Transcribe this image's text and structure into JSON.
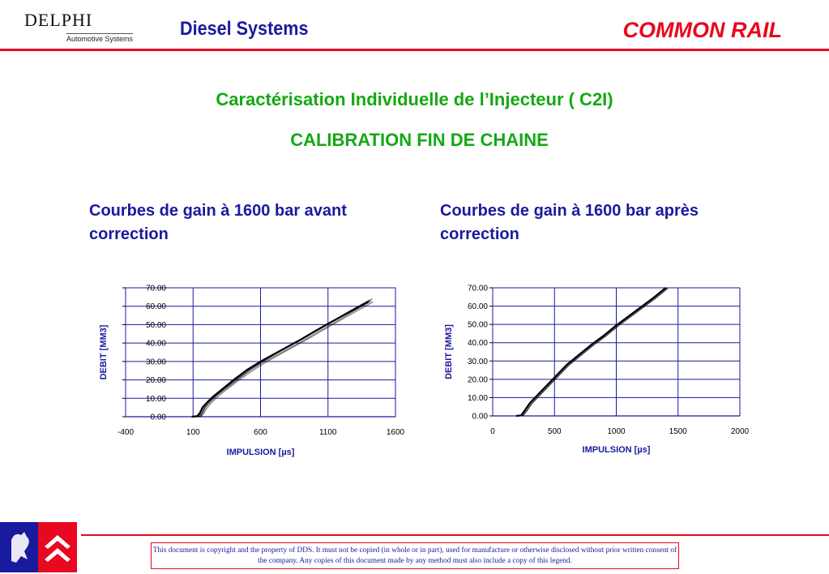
{
  "header": {
    "logo_main": "DELPHI",
    "logo_sub": "Automotive Systems",
    "left_title": "Diesel Systems",
    "right_title": "COMMON RAIL"
  },
  "title_line1": "Caractérisation Individuelle de  l’Injecteur ( C2I)",
  "title_line2": "CALIBRATION FIN DE CHAINE",
  "footer": {
    "notice": "This document is copyright and the property of DDS.  It must not be copied (in whole or in part), used for manufacture or otherwise disclosed without prior written consent of the company.  Any copies of this document made by any method must also include a copy of this legend."
  },
  "colors": {
    "accent_red": "#e8081f",
    "title_blue": "#1a1a9e",
    "title_green": "#14a814",
    "grid_blue": "#1a1a9e"
  },
  "chart_data": [
    {
      "type": "line",
      "caption": "Courbes de gain à 1600 bar avant correction",
      "xlabel": "IMPULSION [µs]",
      "ylabel": "DEBIT [MM3]",
      "x_ticks": [
        -400,
        100,
        600,
        1100,
        1600
      ],
      "x_tick_labels": [
        "-400",
        "100",
        "600",
        "1100",
        "1600"
      ],
      "y_ticks": [
        0,
        10,
        20,
        30,
        40,
        50,
        60,
        70
      ],
      "y_tick_labels": [
        "0.00",
        "10.00",
        "20.00",
        "30.00",
        "40.00",
        "50.00",
        "60.00",
        "70.00"
      ],
      "xlim": [
        -400,
        1600
      ],
      "ylim": [
        0,
        70
      ],
      "grid": true,
      "line_color": "#000000",
      "series": [
        {
          "x": [
            90,
            130,
            150,
            170,
            200,
            250,
            300,
            400,
            500,
            600,
            700,
            800,
            900,
            1000,
            1100,
            1200,
            1300,
            1400
          ],
          "y": [
            0,
            0.3,
            2,
            5,
            7.5,
            11,
            14,
            20,
            25.5,
            30,
            34,
            38,
            42,
            46.3,
            50.5,
            54.5,
            58.5,
            62.5
          ]
        },
        {
          "x": [
            100,
            140,
            160,
            180,
            210,
            260,
            310,
            410,
            510,
            610,
            710,
            810,
            910,
            1010,
            1110,
            1210,
            1310,
            1410
          ],
          "y": [
            0,
            0.3,
            2.5,
            5.5,
            8,
            11.5,
            14.5,
            20.5,
            26,
            30.5,
            34.5,
            38.5,
            42.5,
            46.8,
            51,
            55.3,
            59.5,
            63.5
          ]
        },
        {
          "x": [
            110,
            150,
            170,
            190,
            220,
            270,
            320,
            420,
            520,
            620,
            720,
            820,
            920,
            1020,
            1120,
            1220,
            1320,
            1420
          ],
          "y": [
            0,
            0.2,
            2,
            5,
            7.5,
            11,
            14,
            19.5,
            25,
            29.5,
            33.5,
            37.5,
            41.5,
            45.8,
            50,
            54.3,
            58.5,
            62.7
          ]
        },
        {
          "x": [
            115,
            155,
            175,
            195,
            230,
            280,
            330,
            430,
            530,
            630,
            730,
            830,
            930,
            1030,
            1130,
            1230,
            1330,
            1430
          ],
          "y": [
            0,
            0.2,
            2.5,
            5.5,
            8.5,
            12,
            15,
            20.5,
            26,
            30.5,
            34.8,
            39,
            43,
            47.3,
            51.5,
            55.7,
            59.9,
            64
          ]
        },
        {
          "x": [
            120,
            160,
            180,
            200,
            235,
            285,
            335,
            435,
            535,
            635,
            735,
            835,
            935,
            1035,
            1135,
            1235,
            1335,
            1435
          ],
          "y": [
            0,
            0.2,
            1.8,
            4.5,
            7.5,
            11,
            14,
            19.5,
            24.8,
            29.3,
            33.5,
            37.5,
            41.5,
            45.8,
            50,
            54.2,
            58.3,
            62.4
          ]
        },
        {
          "x": [
            105,
            145,
            165,
            185,
            215,
            265,
            315,
            415,
            515,
            615,
            715,
            815,
            915,
            1015,
            1115,
            1215,
            1315,
            1415
          ],
          "y": [
            0,
            0.3,
            2.2,
            5.2,
            8,
            11.3,
            14.3,
            20,
            25.5,
            30,
            34.2,
            38.2,
            42.2,
            46.5,
            50.7,
            55,
            59.2,
            63.2
          ]
        }
      ]
    },
    {
      "type": "line",
      "caption": "Courbes de gain à 1600 bar après correction",
      "xlabel": "IMPULSION [µs]",
      "ylabel": "DEBIT [MM3]",
      "x_ticks": [
        0,
        500,
        1000,
        1500,
        2000
      ],
      "x_tick_labels": [
        "0",
        "500",
        "1000",
        "1500",
        "2000"
      ],
      "y_ticks": [
        0,
        10,
        20,
        30,
        40,
        50,
        60,
        70
      ],
      "y_tick_labels": [
        "0.00",
        "10.00",
        "20.00",
        "30.00",
        "40.00",
        "50.00",
        "60.00",
        "70.00"
      ],
      "xlim": [
        0,
        2000
      ],
      "ylim": [
        0,
        70
      ],
      "grid": true,
      "line_color": "#000000",
      "series": [
        {
          "x": [
            190,
            230,
            260,
            300,
            400,
            500,
            600,
            700,
            800,
            900,
            1000,
            1100,
            1200,
            1300,
            1400
          ],
          "y": [
            0,
            0.3,
            3,
            7,
            14,
            21,
            28,
            33.5,
            39,
            44,
            49.5,
            54.5,
            59.5,
            64.5,
            70
          ]
        },
        {
          "x": [
            200,
            240,
            270,
            310,
            410,
            510,
            610,
            710,
            810,
            910,
            1010,
            1110,
            1210,
            1310,
            1410
          ],
          "y": [
            0,
            0.3,
            3,
            7,
            14,
            21,
            28,
            33.5,
            39,
            44,
            49.5,
            54.5,
            59.5,
            64.5,
            70
          ]
        },
        {
          "x": [
            205,
            245,
            275,
            315,
            415,
            515,
            615,
            715,
            815,
            915,
            1015,
            1115,
            1215,
            1315,
            1415
          ],
          "y": [
            0,
            0.3,
            2.5,
            6.5,
            13.5,
            20.5,
            27.5,
            33,
            38.5,
            43.5,
            49,
            54,
            59,
            64,
            69.5
          ]
        },
        {
          "x": [
            210,
            250,
            280,
            320,
            420,
            520,
            620,
            720,
            820,
            920,
            1020,
            1120,
            1220,
            1320,
            1420
          ],
          "y": [
            0,
            0.3,
            3,
            7,
            14,
            21,
            28,
            33.5,
            39,
            44,
            49.5,
            54.5,
            59.5,
            64.5,
            70
          ]
        },
        {
          "x": [
            195,
            235,
            265,
            305,
            405,
            505,
            605,
            705,
            805,
            905,
            1005,
            1105,
            1205,
            1305,
            1405
          ],
          "y": [
            0,
            0.3,
            3.2,
            7.2,
            14.2,
            21.2,
            28.2,
            33.7,
            39.2,
            44.2,
            49.7,
            54.7,
            59.7,
            64.7,
            70
          ]
        }
      ]
    }
  ]
}
